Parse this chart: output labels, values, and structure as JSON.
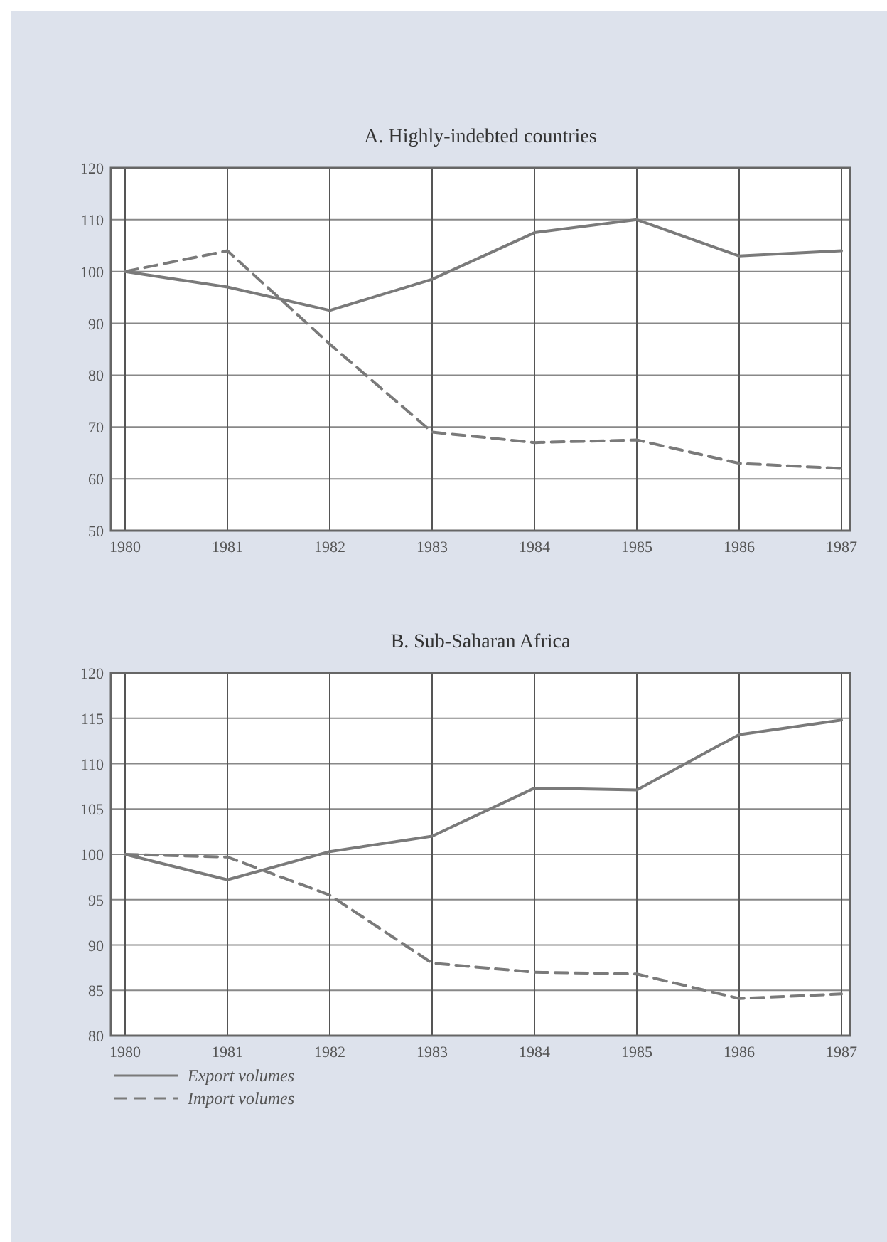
{
  "chart_data": [
    {
      "type": "line",
      "title": "A. Highly-indebted countries",
      "categories": [
        "1980",
        "1981",
        "1982",
        "1983",
        "1984",
        "1985",
        "1986",
        "1987"
      ],
      "ylim": [
        50,
        120
      ],
      "yticks": [
        50,
        60,
        70,
        80,
        90,
        100,
        110,
        120
      ],
      "grid": true,
      "legend": false,
      "series": [
        {
          "color": "#7a7a7a",
          "line_style": "solid",
          "values": [
            100,
            97,
            92.5,
            98.5,
            107.5,
            110,
            103,
            104
          ]
        },
        {
          "color": "#7a7a7a",
          "line_style": "dashed",
          "values": [
            100,
            104,
            86,
            69,
            67,
            67.5,
            63,
            62
          ]
        }
      ]
    },
    {
      "type": "line",
      "title": "B. Sub-Saharan Africa",
      "categories": [
        "1980",
        "1981",
        "1982",
        "1983",
        "1984",
        "1985",
        "1986",
        "1987"
      ],
      "ylim": [
        80,
        120
      ],
      "yticks": [
        80,
        85,
        90,
        95,
        100,
        105,
        110,
        115,
        120
      ],
      "grid": true,
      "legend": "bottom left",
      "series": [
        {
          "name": "Export volumes",
          "color": "#7a7a7a",
          "line_style": "solid",
          "values": [
            100,
            97.2,
            100.3,
            102,
            107.3,
            107.1,
            113.2,
            114.8
          ]
        },
        {
          "name": "Import volumes",
          "color": "#7a7a7a",
          "line_style": "dashed",
          "values": [
            100,
            99.7,
            95.5,
            88,
            87,
            86.8,
            84.1,
            84.6
          ]
        }
      ]
    }
  ]
}
